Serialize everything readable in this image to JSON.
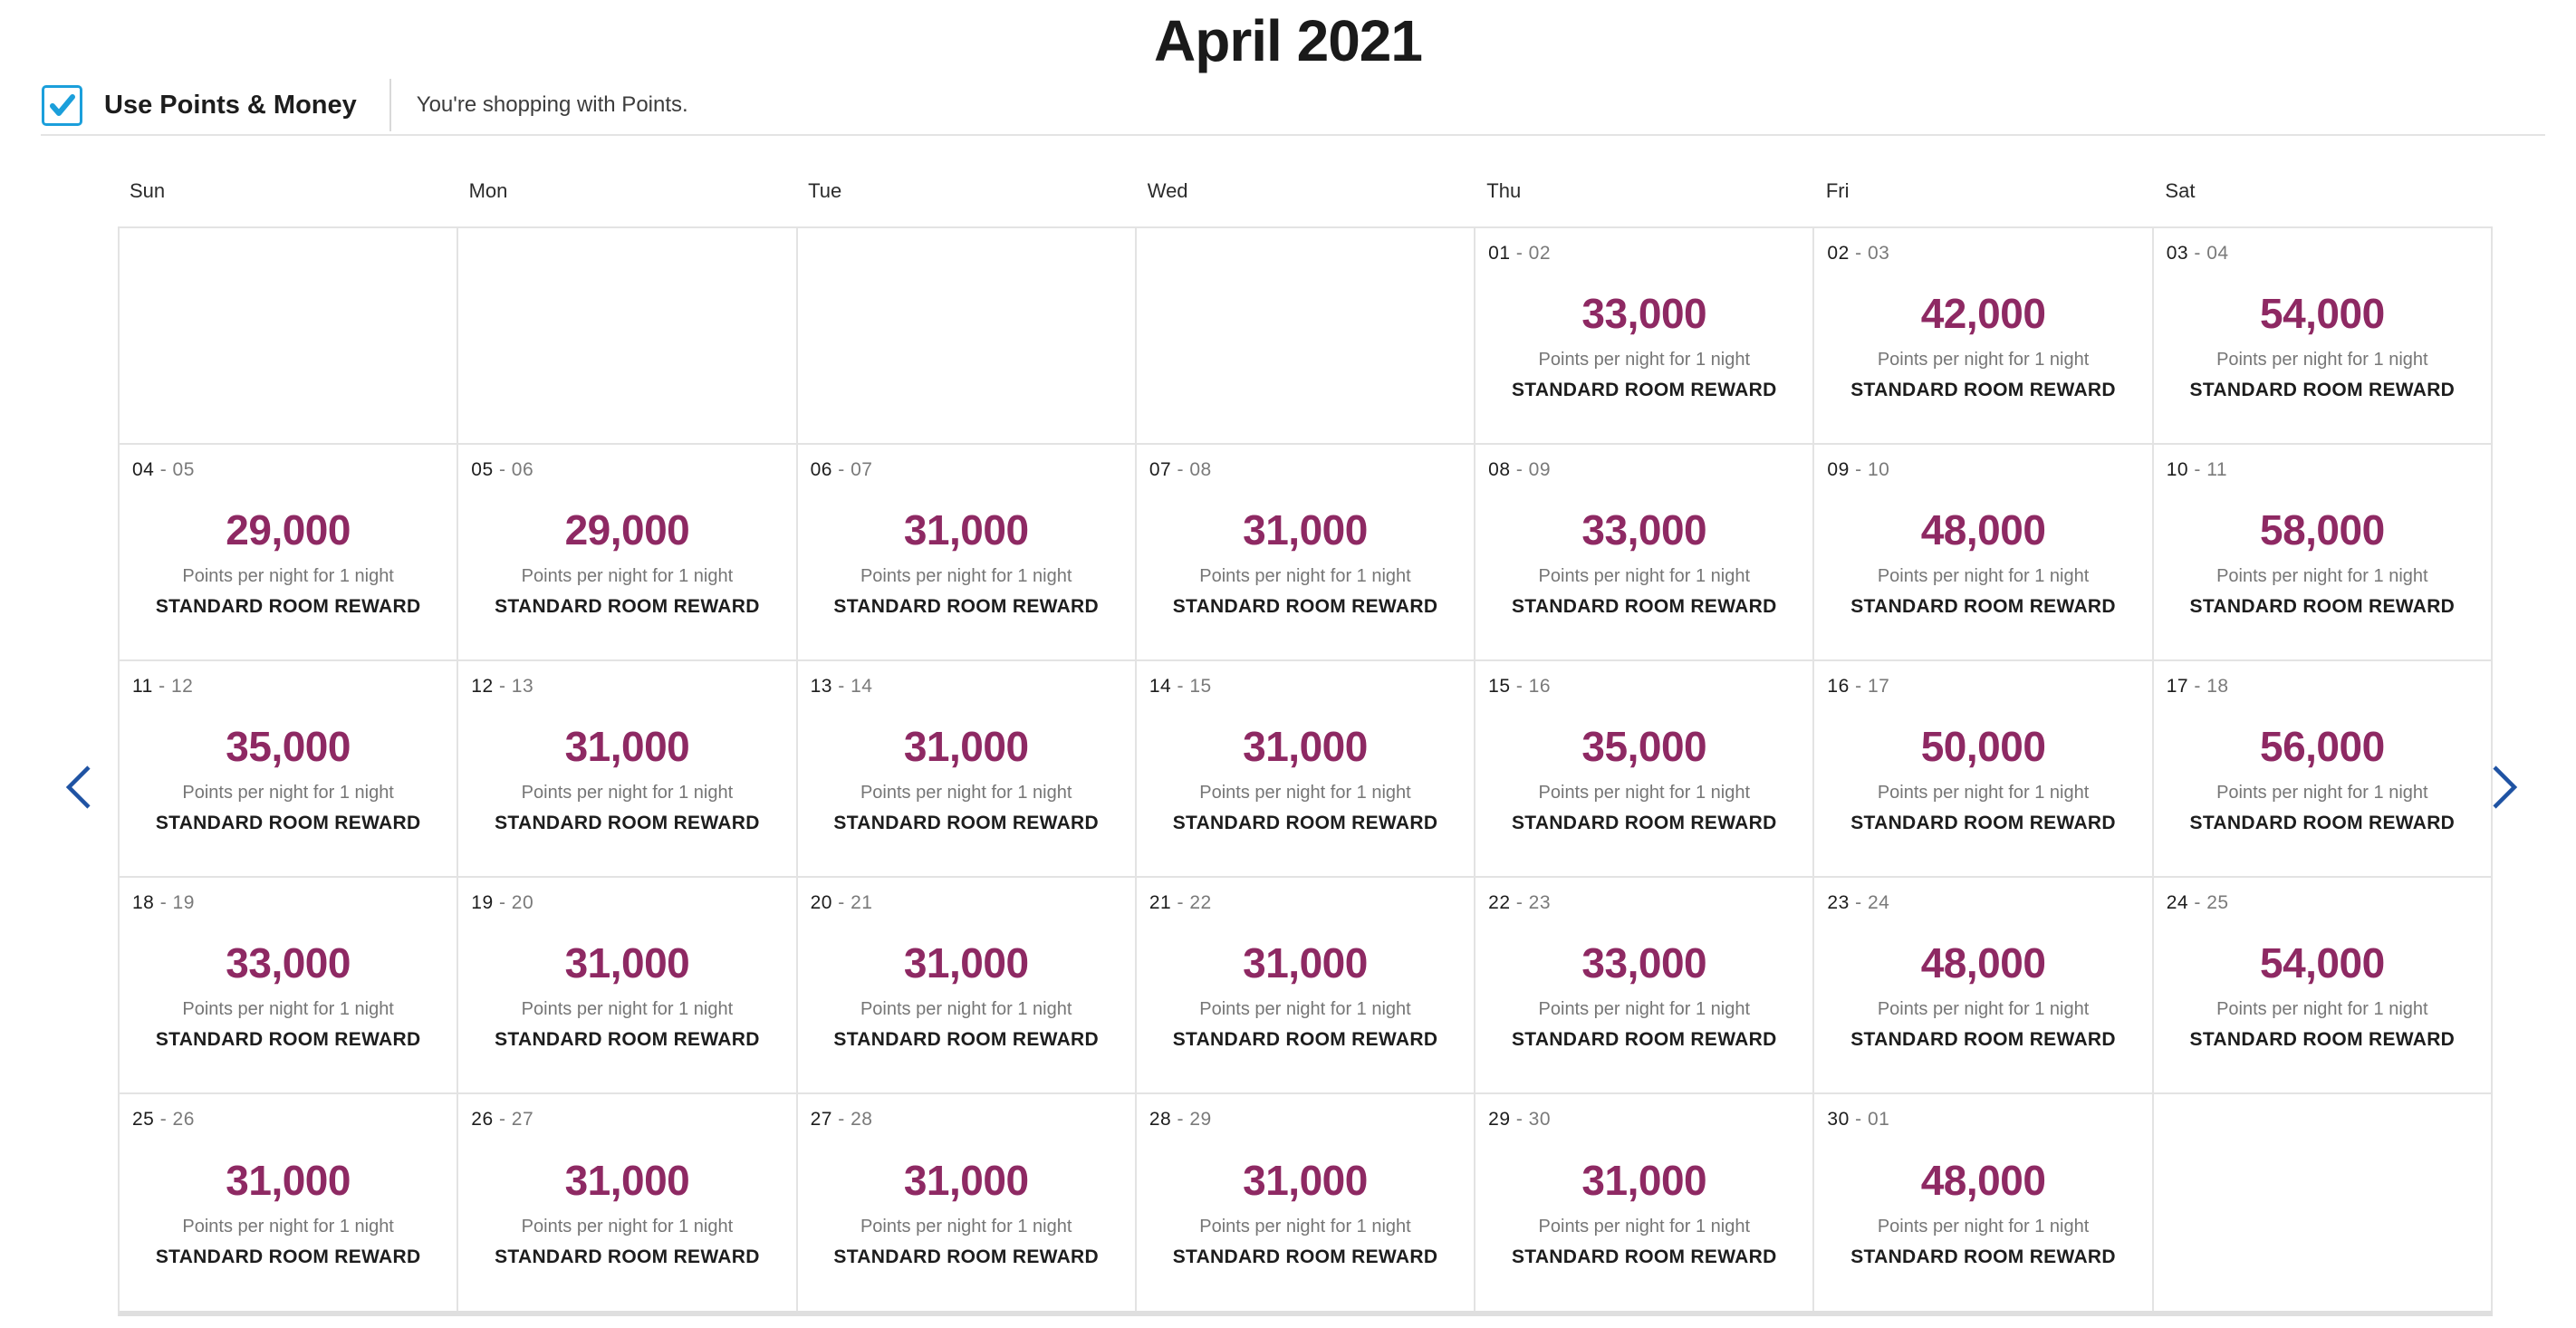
{
  "title": "April 2021",
  "controls": {
    "checkbox_label": "Use Points & Money",
    "checkbox_checked": true,
    "status_text": "You're shopping with Points."
  },
  "colors": {
    "points_accent": "#8e2963",
    "checkbox_blue": "#1b9fdb",
    "nav_arrow_blue": "#1f53a3",
    "grid_border": "#e3e3e3"
  },
  "calendar": {
    "day_headers": [
      "Sun",
      "Mon",
      "Tue",
      "Wed",
      "Thu",
      "Fri",
      "Sat"
    ],
    "cell_caption": "Points per night for 1 night",
    "cell_room_type": "STANDARD ROOM REWARD",
    "date_separator": " - ",
    "weeks": [
      [
        null,
        null,
        null,
        null,
        {
          "date_start": "01",
          "date_end": "02",
          "points": "33,000"
        },
        {
          "date_start": "02",
          "date_end": "03",
          "points": "42,000"
        },
        {
          "date_start": "03",
          "date_end": "04",
          "points": "54,000"
        }
      ],
      [
        {
          "date_start": "04",
          "date_end": "05",
          "points": "29,000"
        },
        {
          "date_start": "05",
          "date_end": "06",
          "points": "29,000"
        },
        {
          "date_start": "06",
          "date_end": "07",
          "points": "31,000"
        },
        {
          "date_start": "07",
          "date_end": "08",
          "points": "31,000"
        },
        {
          "date_start": "08",
          "date_end": "09",
          "points": "33,000"
        },
        {
          "date_start": "09",
          "date_end": "10",
          "points": "48,000"
        },
        {
          "date_start": "10",
          "date_end": "11",
          "points": "58,000"
        }
      ],
      [
        {
          "date_start": "11",
          "date_end": "12",
          "points": "35,000"
        },
        {
          "date_start": "12",
          "date_end": "13",
          "points": "31,000"
        },
        {
          "date_start": "13",
          "date_end": "14",
          "points": "31,000"
        },
        {
          "date_start": "14",
          "date_end": "15",
          "points": "31,000"
        },
        {
          "date_start": "15",
          "date_end": "16",
          "points": "35,000"
        },
        {
          "date_start": "16",
          "date_end": "17",
          "points": "50,000"
        },
        {
          "date_start": "17",
          "date_end": "18",
          "points": "56,000"
        }
      ],
      [
        {
          "date_start": "18",
          "date_end": "19",
          "points": "33,000"
        },
        {
          "date_start": "19",
          "date_end": "20",
          "points": "31,000"
        },
        {
          "date_start": "20",
          "date_end": "21",
          "points": "31,000"
        },
        {
          "date_start": "21",
          "date_end": "22",
          "points": "31,000"
        },
        {
          "date_start": "22",
          "date_end": "23",
          "points": "33,000"
        },
        {
          "date_start": "23",
          "date_end": "24",
          "points": "48,000"
        },
        {
          "date_start": "24",
          "date_end": "25",
          "points": "54,000"
        }
      ],
      [
        {
          "date_start": "25",
          "date_end": "26",
          "points": "31,000"
        },
        {
          "date_start": "26",
          "date_end": "27",
          "points": "31,000"
        },
        {
          "date_start": "27",
          "date_end": "28",
          "points": "31,000"
        },
        {
          "date_start": "28",
          "date_end": "29",
          "points": "31,000"
        },
        {
          "date_start": "29",
          "date_end": "30",
          "points": "31,000"
        },
        {
          "date_start": "30",
          "date_end": "01",
          "points": "48,000"
        },
        null
      ]
    ]
  }
}
